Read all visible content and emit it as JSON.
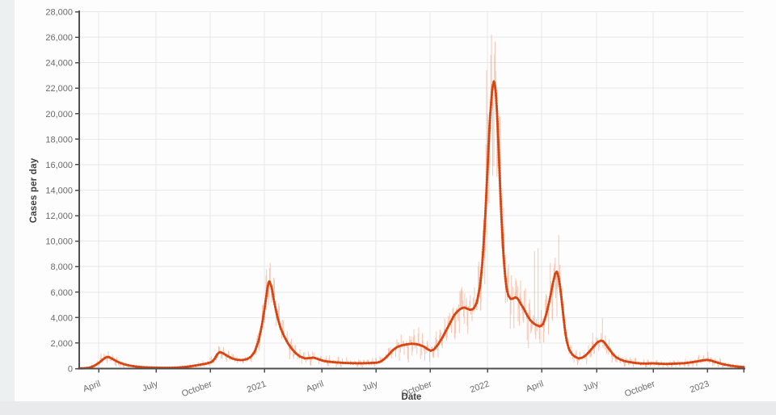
{
  "page": {
    "background": "#fdfdfd",
    "left_strip_color": "#edf0f0",
    "bottom_strip_color": "#e8eaeb"
  },
  "chart_data": {
    "type": "line",
    "title": "",
    "xlabel": "Date",
    "ylabel": "Cases per day",
    "ylim": [
      0,
      28000
    ],
    "ytick_step": 2000,
    "grid": true,
    "legend": "none",
    "axis_color": "#4f4f4f",
    "grid_color": "#e8e8e8",
    "tick_label_color": "#6b6b6b",
    "yticks": [
      {
        "value": 0,
        "label": "0"
      },
      {
        "value": 2000,
        "label": "2,000"
      },
      {
        "value": 4000,
        "label": "4,000"
      },
      {
        "value": 6000,
        "label": "6,000"
      },
      {
        "value": 8000,
        "label": "8,000"
      },
      {
        "value": 10000,
        "label": "10,000"
      },
      {
        "value": 12000,
        "label": "12,000"
      },
      {
        "value": 14000,
        "label": "14,000"
      },
      {
        "value": 16000,
        "label": "16,000"
      },
      {
        "value": 18000,
        "label": "18,000"
      },
      {
        "value": 20000,
        "label": "20,000"
      },
      {
        "value": 22000,
        "label": "22,000"
      },
      {
        "value": 24000,
        "label": "24,000"
      },
      {
        "value": 26000,
        "label": "26,000"
      },
      {
        "value": 28000,
        "label": "28,000"
      }
    ],
    "xticks": [
      {
        "label": "April",
        "px": 122
      },
      {
        "label": "July",
        "px": 193
      },
      {
        "label": "October",
        "px": 260
      },
      {
        "label": "2021",
        "px": 327
      },
      {
        "label": "April",
        "px": 398
      },
      {
        "label": "July",
        "px": 465
      },
      {
        "label": "October",
        "px": 532
      },
      {
        "label": "2022",
        "px": 603
      },
      {
        "label": "April",
        "px": 670
      },
      {
        "label": "July",
        "px": 738
      },
      {
        "label": "October",
        "px": 808
      },
      {
        "label": "2023",
        "px": 875
      }
    ],
    "series": [
      {
        "name": "daily-cases",
        "style": "high-low-bars",
        "color": "#f0926b",
        "opacity": 0.5
      },
      {
        "name": "smoothed-average",
        "style": "line-with-dots",
        "color": "#e4511c",
        "marker_color": "#d6420e"
      }
    ],
    "avg_keypoints": [
      [
        98,
        15
      ],
      [
        104,
        25
      ],
      [
        110,
        60
      ],
      [
        116,
        200
      ],
      [
        122,
        430
      ],
      [
        127,
        700
      ],
      [
        131,
        880
      ],
      [
        134,
        920
      ],
      [
        138,
        800
      ],
      [
        143,
        620
      ],
      [
        148,
        460
      ],
      [
        154,
        330
      ],
      [
        160,
        240
      ],
      [
        168,
        160
      ],
      [
        176,
        110
      ],
      [
        184,
        85
      ],
      [
        192,
        75
      ],
      [
        200,
        60
      ],
      [
        210,
        60
      ],
      [
        220,
        80
      ],
      [
        230,
        130
      ],
      [
        240,
        220
      ],
      [
        248,
        310
      ],
      [
        256,
        400
      ],
      [
        262,
        520
      ],
      [
        266,
        800
      ],
      [
        269,
        1150
      ],
      [
        272,
        1300
      ],
      [
        276,
        1200
      ],
      [
        281,
        1000
      ],
      [
        287,
        800
      ],
      [
        293,
        690
      ],
      [
        299,
        660
      ],
      [
        305,
        730
      ],
      [
        310,
        900
      ],
      [
        315,
        1300
      ],
      [
        320,
        2200
      ],
      [
        324,
        3400
      ],
      [
        328,
        5000
      ],
      [
        331,
        6400
      ],
      [
        333,
        6900
      ],
      [
        336,
        6400
      ],
      [
        339,
        5300
      ],
      [
        343,
        4100
      ],
      [
        347,
        3200
      ],
      [
        351,
        2600
      ],
      [
        356,
        2000
      ],
      [
        361,
        1550
      ],
      [
        366,
        1200
      ],
      [
        371,
        950
      ],
      [
        377,
        800
      ],
      [
        383,
        820
      ],
      [
        388,
        860
      ],
      [
        393,
        760
      ],
      [
        398,
        640
      ],
      [
        404,
        560
      ],
      [
        410,
        520
      ],
      [
        417,
        480
      ],
      [
        424,
        450
      ],
      [
        431,
        430
      ],
      [
        438,
        420
      ],
      [
        445,
        415
      ],
      [
        452,
        420
      ],
      [
        459,
        440
      ],
      [
        466,
        460
      ],
      [
        471,
        550
      ],
      [
        476,
        780
      ],
      [
        481,
        1100
      ],
      [
        486,
        1450
      ],
      [
        491,
        1680
      ],
      [
        497,
        1820
      ],
      [
        503,
        1900
      ],
      [
        509,
        1950
      ],
      [
        515,
        1920
      ],
      [
        520,
        1840
      ],
      [
        525,
        1700
      ],
      [
        529,
        1520
      ],
      [
        533,
        1400
      ],
      [
        537,
        1500
      ],
      [
        542,
        1900
      ],
      [
        547,
        2400
      ],
      [
        552,
        3000
      ],
      [
        557,
        3600
      ],
      [
        562,
        4200
      ],
      [
        566,
        4500
      ],
      [
        570,
        4700
      ],
      [
        574,
        4800
      ],
      [
        578,
        4700
      ],
      [
        582,
        4600
      ],
      [
        586,
        4700
      ],
      [
        590,
        5200
      ],
      [
        594,
        6500
      ],
      [
        597,
        8500
      ],
      [
        600,
        11500
      ],
      [
        603,
        15500
      ],
      [
        606,
        19500
      ],
      [
        609,
        22000
      ],
      [
        611,
        22550
      ],
      [
        613,
        22000
      ],
      [
        615,
        20000
      ],
      [
        617,
        17000
      ],
      [
        619,
        13800
      ],
      [
        621,
        11000
      ],
      [
        623,
        8800
      ],
      [
        625,
        7200
      ],
      [
        627,
        6200
      ],
      [
        629,
        5700
      ],
      [
        632,
        5450
      ],
      [
        635,
        5500
      ],
      [
        638,
        5600
      ],
      [
        641,
        5450
      ],
      [
        644,
        5100
      ],
      [
        648,
        4700
      ],
      [
        652,
        4200
      ],
      [
        656,
        3800
      ],
      [
        660,
        3550
      ],
      [
        664,
        3400
      ],
      [
        668,
        3300
      ],
      [
        672,
        3500
      ],
      [
        676,
        4300
      ],
      [
        680,
        5400
      ],
      [
        684,
        6700
      ],
      [
        687,
        7500
      ],
      [
        689,
        7600
      ],
      [
        691,
        7200
      ],
      [
        693,
        6400
      ],
      [
        695,
        5300
      ],
      [
        697,
        4100
      ],
      [
        699,
        3000
      ],
      [
        701,
        2200
      ],
      [
        704,
        1500
      ],
      [
        708,
        1100
      ],
      [
        712,
        900
      ],
      [
        716,
        800
      ],
      [
        720,
        850
      ],
      [
        724,
        1000
      ],
      [
        728,
        1250
      ],
      [
        732,
        1550
      ],
      [
        736,
        1850
      ],
      [
        740,
        2100
      ],
      [
        744,
        2200
      ],
      [
        747,
        2100
      ],
      [
        750,
        1850
      ],
      [
        754,
        1500
      ],
      [
        758,
        1150
      ],
      [
        762,
        900
      ],
      [
        767,
        720
      ],
      [
        772,
        600
      ],
      [
        778,
        520
      ],
      [
        785,
        450
      ],
      [
        792,
        400
      ],
      [
        800,
        390
      ],
      [
        808,
        410
      ],
      [
        816,
        380
      ],
      [
        824,
        360
      ],
      [
        832,
        380
      ],
      [
        840,
        400
      ],
      [
        848,
        430
      ],
      [
        856,
        500
      ],
      [
        862,
        560
      ],
      [
        868,
        630
      ],
      [
        874,
        680
      ],
      [
        879,
        640
      ],
      [
        884,
        540
      ],
      [
        890,
        420
      ],
      [
        896,
        320
      ],
      [
        902,
        250
      ],
      [
        908,
        190
      ],
      [
        914,
        150
      ],
      [
        920,
        120
      ]
    ],
    "daily_spikes": [
      [
        134,
        1350
      ],
      [
        272,
        1600
      ],
      [
        330,
        7800
      ],
      [
        334,
        8300
      ],
      [
        512,
        3100
      ],
      [
        569,
        6100
      ],
      [
        602,
        23400
      ],
      [
        608,
        26200
      ],
      [
        654,
        1600
      ],
      [
        661,
        9200
      ],
      [
        666,
        9450
      ],
      [
        681,
        8300
      ],
      [
        745,
        3950
      ],
      [
        876,
        1330
      ]
    ],
    "notable_values": {
      "first_wave_peak_avg": 920,
      "oct_2020_peak_avg": 1300,
      "jan_2021_peak_avg": 6900,
      "jan_2021_daily_max": 8300,
      "autumn_2021_plateau_avg": 1950,
      "dec_2021_shoulder_avg": 4800,
      "jan_2022_peak_avg": 22550,
      "jan_2022_daily_max": 26200,
      "apr_2022_peak_avg": 7600,
      "jul_2022_peak_avg": 2200,
      "jan_2023_bump_avg": 680
    }
  }
}
